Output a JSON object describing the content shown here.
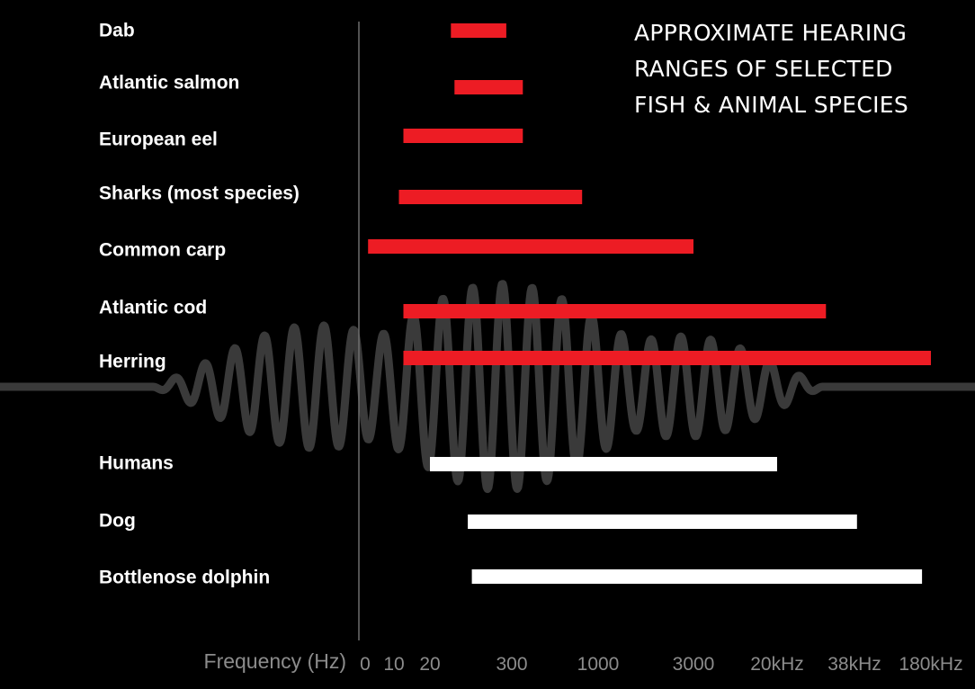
{
  "chart_data": {
    "type": "bar",
    "title_lines": [
      "APPROXIMATE HEARING",
      "RANGES OF SELECTED",
      "FISH & ANIMAL SPECIES"
    ],
    "xlabel": "Frequency (Hz)",
    "ylabel": "",
    "x_ticks": [
      "0",
      "10",
      "20",
      "300",
      "1000",
      "3000",
      "20kHz",
      "38kHz",
      "180kHz"
    ],
    "x_tick_values_hz": [
      0,
      10,
      20,
      300,
      1000,
      3000,
      20000,
      38000,
      180000
    ],
    "grid": false,
    "legend": "none",
    "categories": [
      "Dab",
      "Atlantic salmon",
      "European eel",
      "Sharks (most species)",
      "Common carp",
      "Atlantic cod",
      "Herring",
      "Humans",
      "Dog",
      "Bottlenose dolphin"
    ],
    "groups": [
      "fish",
      "fish",
      "fish",
      "fish",
      "fish",
      "fish",
      "fish",
      "animal",
      "animal",
      "animal"
    ],
    "ranges_hz": [
      [
        40,
        250
      ],
      [
        45,
        350
      ],
      [
        12,
        350
      ],
      [
        11,
        800
      ],
      [
        1,
        3000
      ],
      [
        12,
        30000
      ],
      [
        12,
        180000
      ],
      [
        20,
        20000
      ],
      [
        70,
        40000
      ],
      [
        80,
        150000
      ]
    ],
    "colors": {
      "fish": "#ed1c24",
      "animal": "#ffffff",
      "background": "#000000",
      "axis": "#6e6e6e",
      "tick_label": "#8c8c8c",
      "wave": "#3a3a3a"
    }
  }
}
